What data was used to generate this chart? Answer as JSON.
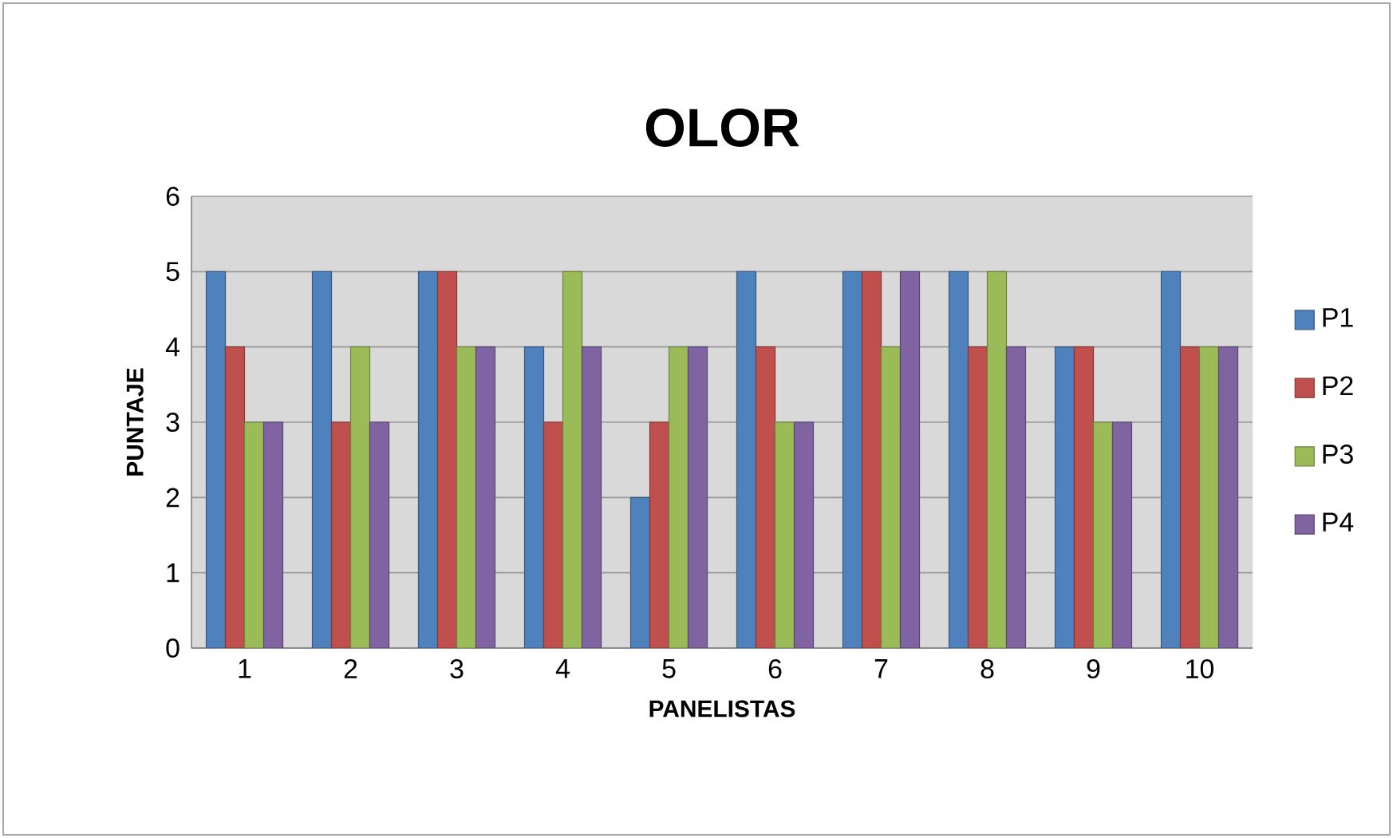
{
  "chart_data": {
    "type": "bar",
    "title": "OLOR",
    "xlabel": "PANELISTAS",
    "ylabel": "PUNTAJE",
    "categories": [
      "1",
      "2",
      "3",
      "4",
      "5",
      "6",
      "7",
      "8",
      "9",
      "10"
    ],
    "series": [
      {
        "name": "P1",
        "color": "#4f81bd",
        "values": [
          5,
          5,
          5,
          4,
          2,
          5,
          5,
          5,
          4,
          5
        ]
      },
      {
        "name": "P2",
        "color": "#c0504d",
        "values": [
          4,
          3,
          5,
          3,
          3,
          4,
          5,
          4,
          4,
          4
        ]
      },
      {
        "name": "P3",
        "color": "#9bbb59",
        "values": [
          3,
          4,
          4,
          5,
          4,
          3,
          4,
          5,
          3,
          4
        ]
      },
      {
        "name": "P4",
        "color": "#8064a2",
        "values": [
          3,
          3,
          4,
          4,
          4,
          3,
          5,
          4,
          3,
          4
        ]
      }
    ],
    "ylim": [
      0,
      6
    ],
    "yticks": [
      0,
      1,
      2,
      3,
      4,
      5,
      6
    ],
    "grid": "y",
    "legend": "right"
  }
}
